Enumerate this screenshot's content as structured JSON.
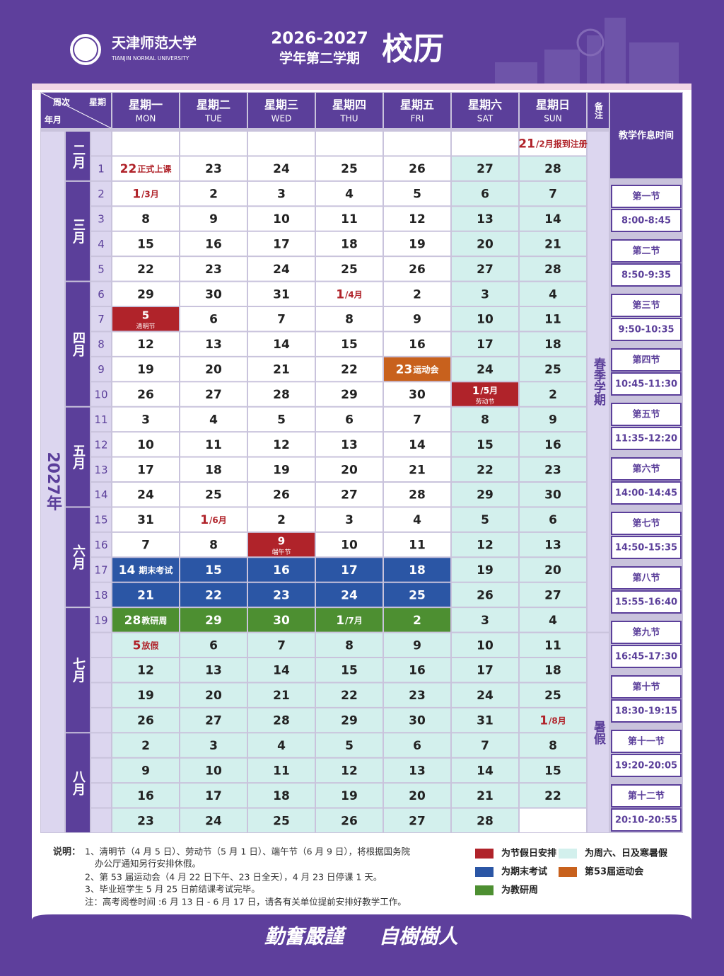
{
  "header": {
    "school": "天津师范大学",
    "school_en": "TIANJIN NORMAL UNIVERSITY",
    "years": "2026-2027",
    "term": "学年第二学期",
    "title": "校历"
  },
  "table": {
    "corner": [
      "周次",
      "星期",
      "年月"
    ],
    "year": "2027年",
    "remark": "备注",
    "days": [
      [
        "星期一",
        "MON"
      ],
      [
        "星期二",
        "TUE"
      ],
      [
        "星期三",
        "WED"
      ],
      [
        "星期四",
        "THU"
      ],
      [
        "星期五",
        "FRI"
      ],
      [
        "星期六",
        "SAT"
      ],
      [
        "星期日",
        "SUN"
      ]
    ],
    "palette": {
      "w": "#ffffff",
      "c": "#d3f0ed",
      "r": "#b0232a",
      "b": "#2b56a5",
      "g": "#4d8f31",
      "o": "#c8611d"
    },
    "rows": [
      {
        "week": null,
        "month": "二月",
        "term": "春季学期",
        "fill": "wwwwwww",
        "cells": [
          null,
          null,
          null,
          null,
          null,
          null,
          {
            "n": "21",
            "sub": "/2月报到注册"
          }
        ]
      },
      {
        "week": 1,
        "fill": "wwwwwcc",
        "cells": [
          {
            "n": "22",
            "sub": "正式上课"
          },
          23,
          24,
          25,
          26,
          27,
          28
        ]
      },
      {
        "week": 2,
        "month": "三月",
        "fill": "wwwwwcc",
        "cells": [
          {
            "n": "1",
            "sub": "/3月"
          },
          2,
          3,
          4,
          5,
          6,
          7
        ]
      },
      {
        "week": 3,
        "fill": "wwwwwcc",
        "cells": [
          8,
          9,
          10,
          11,
          12,
          13,
          14
        ]
      },
      {
        "week": 4,
        "fill": "wwwwwcc",
        "cells": [
          15,
          16,
          17,
          18,
          19,
          20,
          21
        ]
      },
      {
        "week": 5,
        "fill": "wwwwwcc",
        "cells": [
          22,
          23,
          24,
          25,
          26,
          27,
          28
        ]
      },
      {
        "week": 6,
        "month": "四月",
        "fill": "wwwwwcc",
        "cells": [
          29,
          30,
          31,
          {
            "n": "1",
            "sub": "/4月"
          },
          2,
          3,
          4
        ]
      },
      {
        "week": 7,
        "fill": "rwwwwcc",
        "cells": [
          {
            "n": "5",
            "note": "清明节"
          },
          6,
          7,
          8,
          9,
          10,
          11
        ]
      },
      {
        "week": 8,
        "fill": "wwwwwcc",
        "cells": [
          12,
          13,
          14,
          15,
          16,
          17,
          18
        ]
      },
      {
        "week": 9,
        "fill": "wwwwocc",
        "cells": [
          19,
          20,
          21,
          22,
          {
            "n": "23",
            "sub": "运动会"
          },
          24,
          25
        ]
      },
      {
        "week": 10,
        "fill": "wwwwwrc",
        "cells": [
          26,
          27,
          28,
          29,
          30,
          {
            "n": "1",
            "sub": "/5月",
            "note": "劳动节"
          },
          2
        ]
      },
      {
        "week": 11,
        "month": "五月",
        "fill": "wwwwwcc",
        "cells": [
          3,
          4,
          5,
          6,
          7,
          8,
          9
        ]
      },
      {
        "week": 12,
        "fill": "wwwwwcc",
        "cells": [
          10,
          11,
          12,
          13,
          14,
          15,
          16
        ]
      },
      {
        "week": 13,
        "fill": "wwwwwcc",
        "cells": [
          17,
          18,
          19,
          20,
          21,
          22,
          23
        ]
      },
      {
        "week": 14,
        "fill": "wwwwwcc",
        "cells": [
          24,
          25,
          26,
          27,
          28,
          29,
          30
        ]
      },
      {
        "week": 15,
        "month": "六月",
        "fill": "wwwwwcc",
        "cells": [
          31,
          {
            "n": "1",
            "sub": "/6月"
          },
          2,
          3,
          4,
          5,
          6
        ]
      },
      {
        "week": 16,
        "fill": "wwrwwcc",
        "cells": [
          7,
          8,
          {
            "n": "9",
            "note": "端午节"
          },
          10,
          11,
          12,
          13
        ]
      },
      {
        "week": 17,
        "fill": "bbbbbcc",
        "cells": [
          {
            "n": "14",
            "sub": "期末考试"
          },
          15,
          16,
          17,
          18,
          19,
          20
        ]
      },
      {
        "week": 18,
        "fill": "bbbbbcc",
        "cells": [
          21,
          22,
          23,
          24,
          25,
          26,
          27
        ]
      },
      {
        "week": 19,
        "month": "七月",
        "fill": "gggggcc",
        "cells": [
          {
            "n": "28",
            "sub": "教研周"
          },
          29,
          30,
          {
            "n": "1",
            "sub": "/7月"
          },
          2,
          3,
          4
        ]
      },
      {
        "week": null,
        "term": "暑假",
        "fill": "ccccccc",
        "cells": [
          {
            "n": "5",
            "sub": "放假"
          },
          6,
          7,
          8,
          9,
          10,
          11
        ]
      },
      {
        "week": null,
        "fill": "ccccccc",
        "cells": [
          12,
          13,
          14,
          15,
          16,
          17,
          18
        ]
      },
      {
        "week": null,
        "fill": "ccccccc",
        "cells": [
          19,
          20,
          21,
          22,
          23,
          24,
          25
        ]
      },
      {
        "week": null,
        "fill": "ccccccc",
        "cells": [
          26,
          27,
          28,
          29,
          30,
          31,
          {
            "n": "1",
            "sub": "/8月"
          }
        ]
      },
      {
        "week": null,
        "month": "八月",
        "fill": "ccccccc",
        "cells": [
          2,
          3,
          4,
          5,
          6,
          7,
          8
        ]
      },
      {
        "week": null,
        "fill": "ccccccc",
        "cells": [
          9,
          10,
          11,
          12,
          13,
          14,
          15
        ]
      },
      {
        "week": null,
        "fill": "ccccccc",
        "cells": [
          16,
          17,
          18,
          19,
          20,
          21,
          22
        ]
      },
      {
        "week": null,
        "fill": "ccccccw",
        "cells": [
          23,
          24,
          25,
          26,
          27,
          28,
          null
        ]
      }
    ]
  },
  "schedule": {
    "title": "教学作息时间",
    "periods": [
      [
        "第一节",
        "8:00-8:45"
      ],
      [
        "第二节",
        "8:50-9:35"
      ],
      [
        "第三节",
        "9:50-10:35"
      ],
      [
        "第四节",
        "10:45-11:30"
      ],
      [
        "第五节",
        "11:35-12:20"
      ],
      [
        "第六节",
        "14:00-14:45"
      ],
      [
        "第七节",
        "14:50-15:35"
      ],
      [
        "第八节",
        "15:55-16:40"
      ],
      [
        "第九节",
        "16:45-17:30"
      ],
      [
        "第十节",
        "18:30-19:15"
      ],
      [
        "第十一节",
        "19:20-20:05"
      ],
      [
        "第十二节",
        "20:10-20:55"
      ]
    ]
  },
  "notes": {
    "label": "说明：",
    "lines": [
      "1、清明节（4 月 5 日）、劳动节（5 月 1 日）、端午节（6 月 9 日），将根据国务院",
      "办公厅通知另行安排休假。",
      "2、第 53 届运动会（4 月 22 日下午、23 日全天），4 月 23 日停课 1 天。",
      "3、毕业班学生 5 月 25 日前结课考试完毕。",
      "注：高考阅卷时间 :6 月 13 日 - 6 月 17 日，请各有关单位提前安排好教学工作。"
    ]
  },
  "legend": [
    {
      "label": "为节假日安排",
      "color": "#b0232a"
    },
    {
      "label": "为周六、日及寒暑假",
      "color": "#d3f0ed"
    },
    {
      "label": "为期末考试",
      "color": "#2b56a5"
    },
    {
      "label": "第53届运动会",
      "color": "#c8611d"
    },
    {
      "label": "为教研周",
      "color": "#4d8f31"
    }
  ],
  "footer": [
    "勤奮嚴謹",
    "自樹樹人"
  ]
}
